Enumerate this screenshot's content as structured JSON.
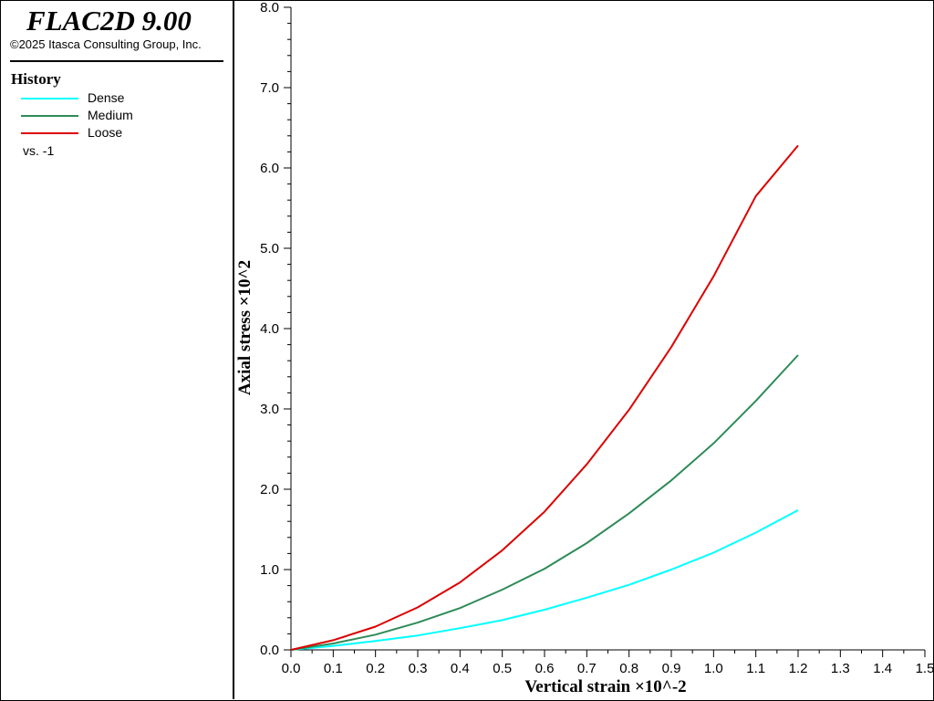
{
  "app": {
    "title": "FLAC2D 9.00",
    "copyright": "©2025 Itasca Consulting Group, Inc."
  },
  "legend": {
    "heading": "History",
    "items": [
      {
        "label": "Dense",
        "color": "#00ffff"
      },
      {
        "label": "Medium",
        "color": "#2e8b57"
      },
      {
        "label": "Loose",
        "color": "#dd0000"
      }
    ],
    "vs_label": "vs. -1"
  },
  "chart_data": {
    "type": "line",
    "xlabel": "Vertical strain ×10^-2",
    "ylabel": "Axial stress ×10^2",
    "xlim": [
      0.0,
      1.5
    ],
    "ylim": [
      0.0,
      8.0
    ],
    "x_ticks": [
      "0.0",
      "0.1",
      "0.2",
      "0.3",
      "0.4",
      "0.5",
      "0.6",
      "0.7",
      "0.8",
      "0.9",
      "1.0",
      "1.1",
      "1.2",
      "1.3",
      "1.4",
      "1.5"
    ],
    "y_ticks": [
      "0.0",
      "1.0",
      "2.0",
      "3.0",
      "4.0",
      "5.0",
      "6.0",
      "7.0",
      "8.0"
    ],
    "grid": false,
    "legend_position": "left panel",
    "series": [
      {
        "name": "Dense",
        "color": "#00ffff",
        "x": [
          0.0,
          0.1,
          0.2,
          0.3,
          0.4,
          0.5,
          0.6,
          0.7,
          0.8,
          0.9,
          1.0,
          1.1,
          1.2
        ],
        "y": [
          0.0,
          0.05,
          0.11,
          0.18,
          0.27,
          0.37,
          0.5,
          0.65,
          0.81,
          1.0,
          1.21,
          1.46,
          1.74
        ]
      },
      {
        "name": "Medium",
        "color": "#2e8b57",
        "x": [
          0.0,
          0.1,
          0.2,
          0.3,
          0.4,
          0.5,
          0.6,
          0.7,
          0.8,
          0.9,
          1.0,
          1.1,
          1.2
        ],
        "y": [
          0.0,
          0.08,
          0.19,
          0.34,
          0.52,
          0.75,
          1.01,
          1.33,
          1.7,
          2.11,
          2.57,
          3.1,
          3.67
        ]
      },
      {
        "name": "Loose",
        "color": "#dd0000",
        "x": [
          0.0,
          0.1,
          0.2,
          0.3,
          0.4,
          0.5,
          0.6,
          0.7,
          0.8,
          0.9,
          1.0,
          1.1,
          1.2
        ],
        "y": [
          0.0,
          0.12,
          0.29,
          0.53,
          0.84,
          1.24,
          1.72,
          2.31,
          2.99,
          3.77,
          4.65,
          5.65,
          6.28
        ]
      }
    ]
  }
}
